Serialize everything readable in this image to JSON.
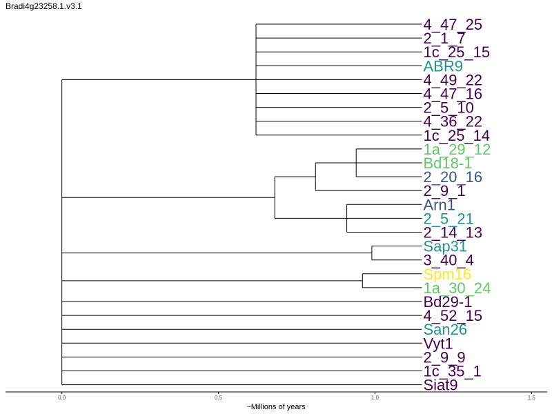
{
  "chart_data": {
    "type": "dendrogram",
    "title": "Bradi4g23258.1.v3.1",
    "xlabel": "~Millions of years",
    "xlim": [
      -0.18,
      1.55
    ],
    "xticks": [
      {
        "value": 0.0,
        "label": "0.0"
      },
      {
        "value": 0.5,
        "label": "0.5"
      },
      {
        "value": 1.0,
        "label": "1.0"
      },
      {
        "value": 1.5,
        "label": "1.5"
      }
    ],
    "tip_depth": 1.15,
    "colors": {
      "dark_purple": "#440154",
      "teal": "#21918c",
      "blue": "#3b528b",
      "green": "#5ec962",
      "yellow": "#fde725",
      "line": "#000000"
    },
    "leaves": [
      {
        "label": "4_47_25",
        "color": "dark_purple"
      },
      {
        "label": "2_1_7",
        "color": "dark_purple"
      },
      {
        "label": "1c_25_15",
        "color": "dark_purple"
      },
      {
        "label": "ABR9",
        "color": "teal"
      },
      {
        "label": "4_49_22",
        "color": "dark_purple"
      },
      {
        "label": "4_47_16",
        "color": "dark_purple"
      },
      {
        "label": "2_5_10",
        "color": "dark_purple"
      },
      {
        "label": "4_36_22",
        "color": "dark_purple"
      },
      {
        "label": "1c_25_14",
        "color": "dark_purple"
      },
      {
        "label": "1a_29_12",
        "color": "green"
      },
      {
        "label": "Bd18-1",
        "color": "green"
      },
      {
        "label": "2_20_16",
        "color": "blue"
      },
      {
        "label": "2_9_1",
        "color": "dark_purple"
      },
      {
        "label": "Arn1",
        "color": "blue"
      },
      {
        "label": "2_5_21",
        "color": "teal"
      },
      {
        "label": "2_14_13",
        "color": "dark_purple"
      },
      {
        "label": "Sap31",
        "color": "teal"
      },
      {
        "label": "3_40_4",
        "color": "dark_purple"
      },
      {
        "label": "Spm16",
        "color": "yellow"
      },
      {
        "label": "1a_30_24",
        "color": "green"
      },
      {
        "label": "Bd29-1",
        "color": "dark_purple"
      },
      {
        "label": "4_52_15",
        "color": "dark_purple"
      },
      {
        "label": "San26",
        "color": "teal"
      },
      {
        "label": "Vyt1",
        "color": "dark_purple"
      },
      {
        "label": "2_9_9",
        "color": "dark_purple"
      },
      {
        "label": "1c_35_1",
        "color": "dark_purple"
      },
      {
        "label": "Siat9",
        "color": "dark_purple"
      }
    ],
    "tree": {
      "h": 0.0,
      "children": [
        {
          "h": 0.62,
          "children": [
            {
              "leaf": "4_47_25"
            },
            {
              "leaf": "2_1_7"
            },
            {
              "leaf": "1c_25_15"
            },
            {
              "leaf": "ABR9"
            },
            {
              "leaf": "4_49_22"
            },
            {
              "leaf": "4_47_16"
            },
            {
              "leaf": "2_5_10"
            },
            {
              "leaf": "4_36_22"
            },
            {
              "leaf": "1c_25_14"
            }
          ]
        },
        {
          "h": 0.68,
          "children": [
            {
              "h": 0.81,
              "children": [
                {
                  "h": 0.94,
                  "children": [
                    {
                      "leaf": "1a_29_12"
                    },
                    {
                      "leaf": "Bd18-1"
                    },
                    {
                      "leaf": "2_20_16"
                    }
                  ]
                },
                {
                  "leaf": "2_9_1"
                }
              ]
            },
            {
              "h": 0.91,
              "children": [
                {
                  "leaf": "Arn1"
                },
                {
                  "leaf": "2_5_21"
                },
                {
                  "leaf": "2_14_13"
                }
              ]
            }
          ]
        },
        {
          "h": 0.99,
          "children": [
            {
              "leaf": "Sap31"
            },
            {
              "leaf": "3_40_4"
            }
          ]
        },
        {
          "h": 0.96,
          "children": [
            {
              "leaf": "Spm16"
            },
            {
              "leaf": "1a_30_24"
            }
          ]
        },
        {
          "leaf": "Bd29-1"
        },
        {
          "leaf": "4_52_15"
        },
        {
          "leaf": "San26"
        },
        {
          "leaf": "Vyt1"
        },
        {
          "leaf": "2_9_9"
        },
        {
          "leaf": "1c_35_1"
        },
        {
          "leaf": "Siat9"
        }
      ]
    }
  }
}
